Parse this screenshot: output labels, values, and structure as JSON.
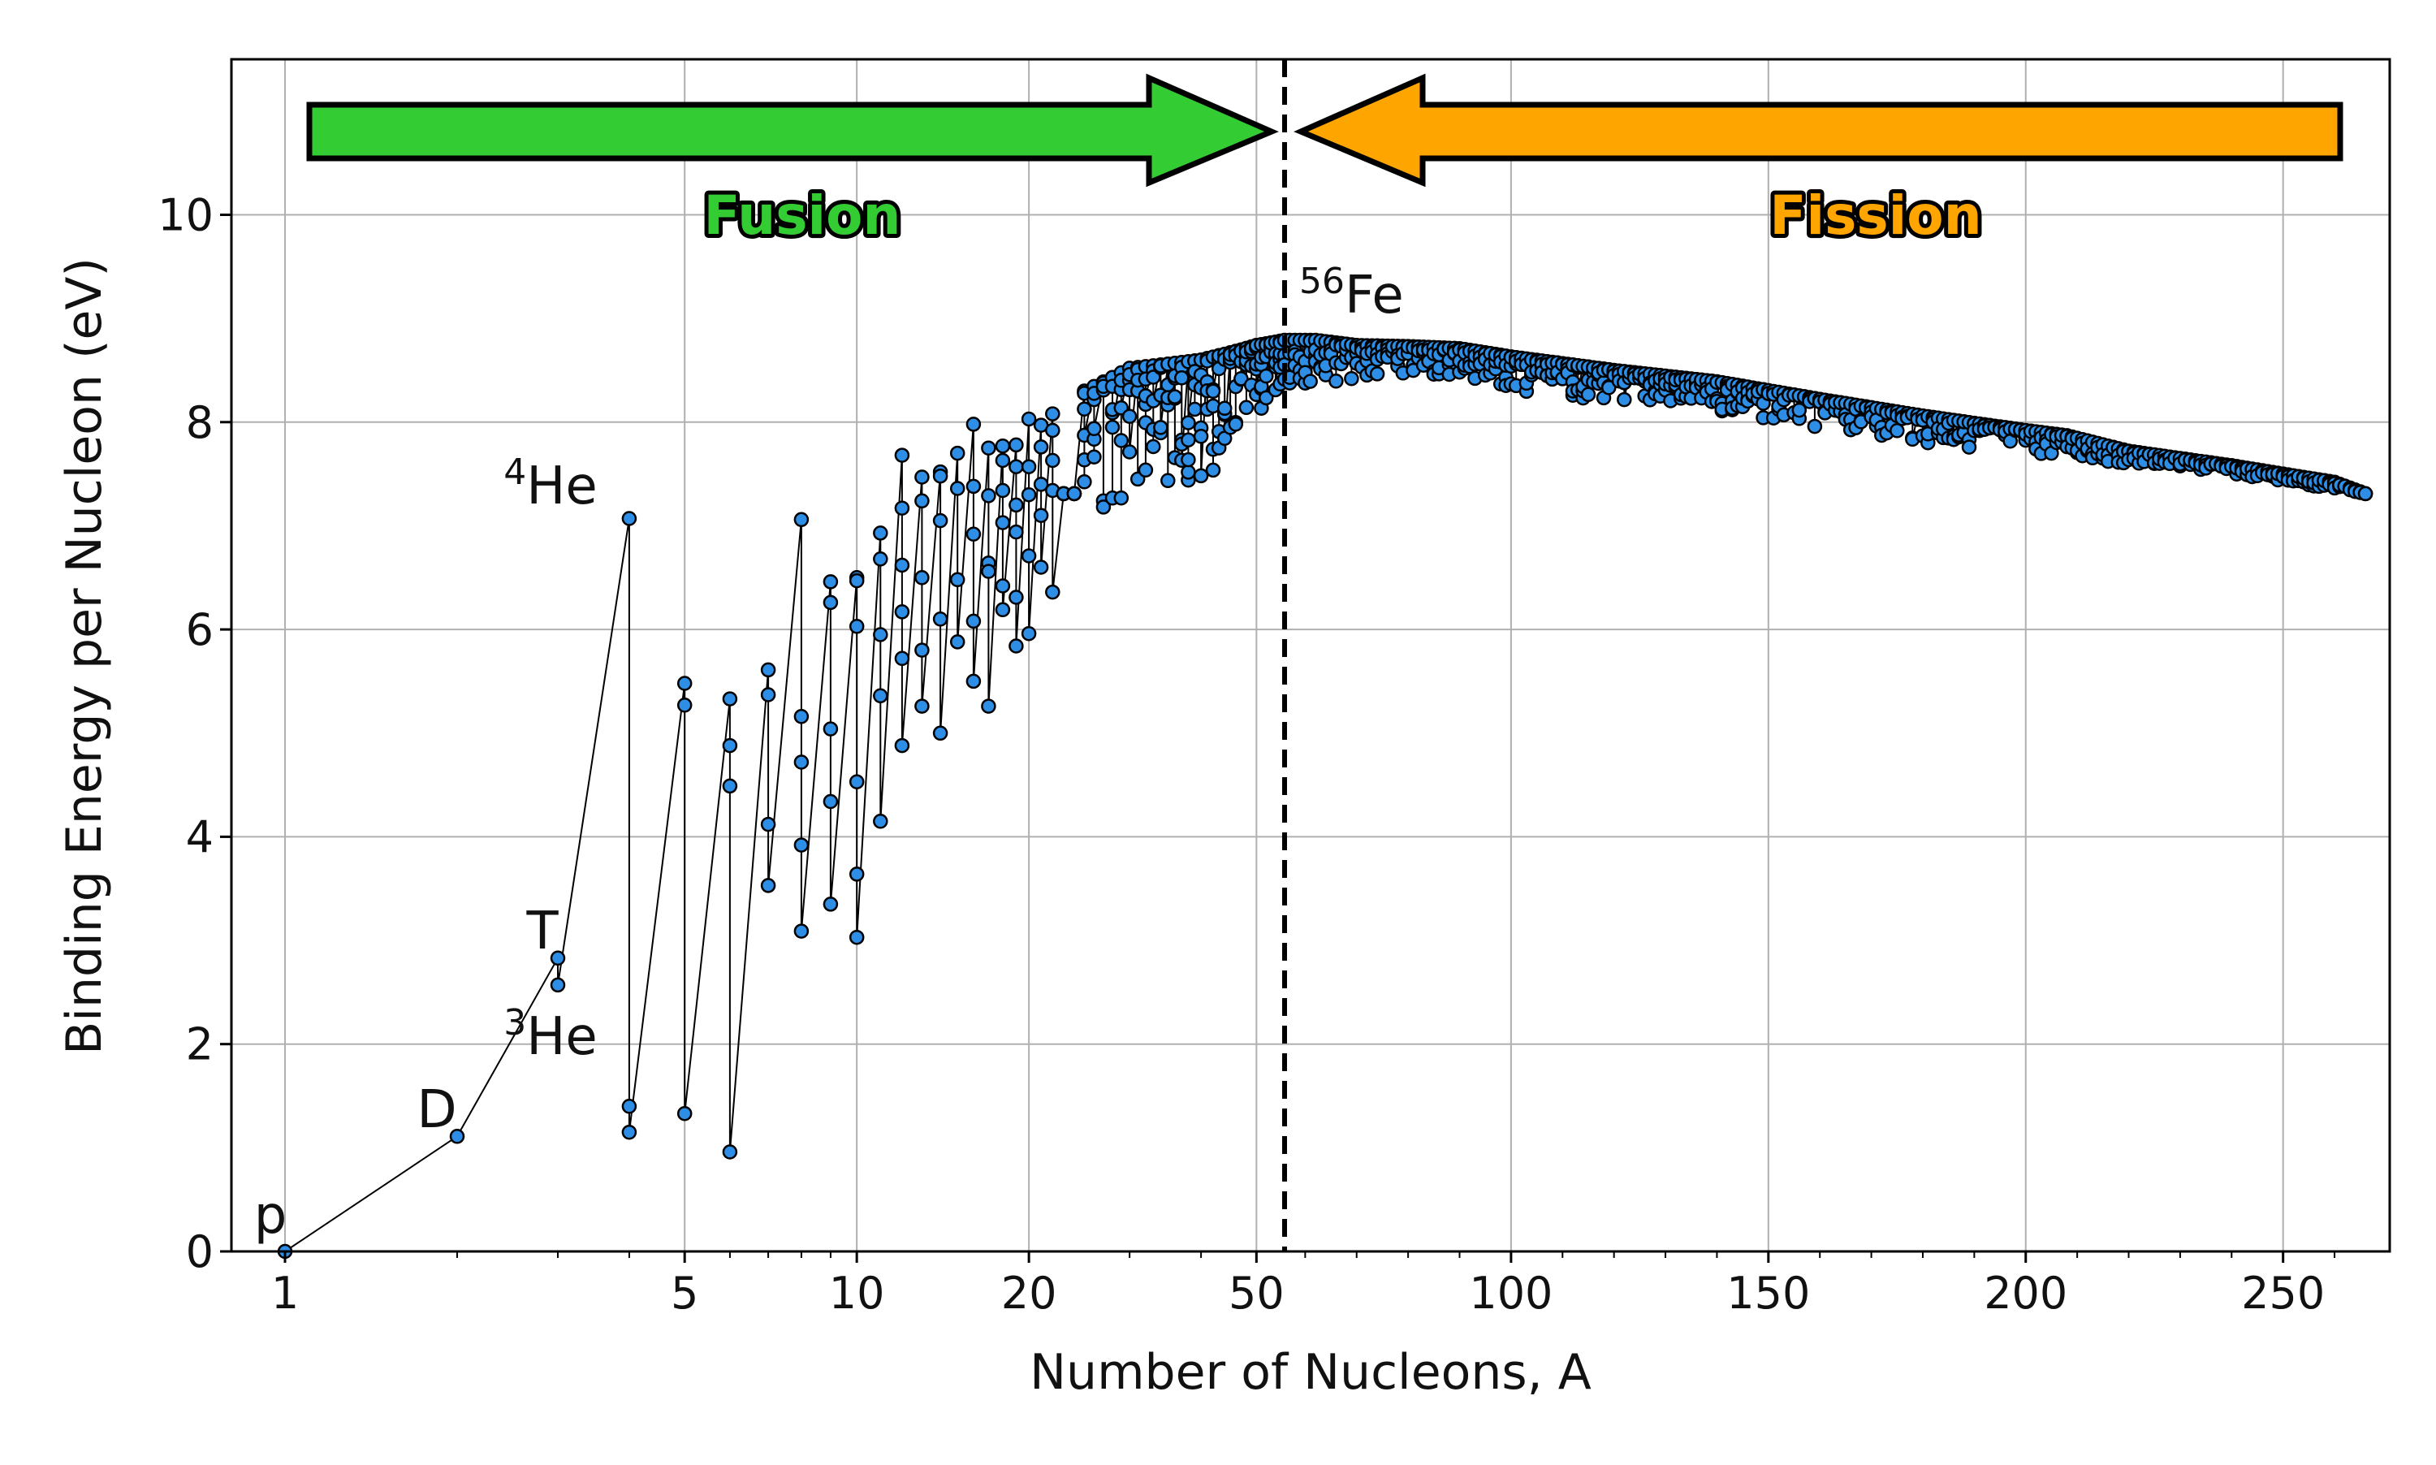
{
  "chart_data": {
    "type": "scatter",
    "title": "",
    "xlabel": "Number of Nucleons, A",
    "ylabel": "Binding Energy per Nucleon (eV)",
    "ylim": [
      0,
      11.5
    ],
    "yticks": [
      "0",
      "2",
      "4",
      "6",
      "8",
      "10"
    ],
    "x_scale": "log below A=56, linear above A=56",
    "xticks": [
      "1",
      "5",
      "10",
      "20",
      "50",
      "100",
      "150",
      "200",
      "250"
    ],
    "grid": true,
    "colors": {
      "points": "#2e8ee5",
      "fusion": "#33cc33",
      "fission": "#ffa500",
      "line": "#000000"
    },
    "annotations": [
      {
        "label": "p",
        "sup": "",
        "x": 1,
        "y": 0
      },
      {
        "label": "D",
        "sup": "",
        "x": 2,
        "y": 1.11
      },
      {
        "label": "T",
        "sup": "",
        "x": 3,
        "y": 2.83
      },
      {
        "label": "He",
        "sup": "3",
        "x": 3,
        "y": 2.57
      },
      {
        "label": "He",
        "sup": "4",
        "x": 4,
        "y": 7.07
      },
      {
        "label": "Fe",
        "sup": "56",
        "x": 56,
        "y": 8.79
      }
    ],
    "divider": {
      "x": 56,
      "style": "dashed"
    },
    "arrows": [
      {
        "label": "Fusion",
        "direction": "right",
        "color": "#33cc33"
      },
      {
        "label": "Fission",
        "direction": "left",
        "color": "#ffa500"
      }
    ],
    "light_nuclei": [
      {
        "A": 1,
        "values": [
          0.0
        ]
      },
      {
        "A": 2,
        "values": [
          1.11
        ]
      },
      {
        "A": 3,
        "values": [
          2.83,
          2.57
        ]
      },
      {
        "A": 4,
        "values": [
          7.07,
          1.4,
          1.15
        ]
      },
      {
        "A": 5,
        "values": [
          5.48,
          5.27,
          1.33
        ]
      },
      {
        "A": 6,
        "values": [
          5.33,
          4.88,
          4.49,
          0.96
        ]
      },
      {
        "A": 7,
        "values": [
          5.61,
          5.37,
          4.12,
          3.53
        ]
      },
      {
        "A": 8,
        "values": [
          7.06,
          5.16,
          4.72,
          3.92,
          3.09
        ]
      },
      {
        "A": 9,
        "values": [
          6.46,
          6.26,
          5.04,
          4.34,
          3.35
        ]
      },
      {
        "A": 10,
        "values": [
          6.5,
          6.47,
          6.03,
          4.53,
          3.64,
          3.03
        ]
      },
      {
        "A": 11,
        "values": [
          6.93,
          6.68,
          5.95,
          5.36,
          4.15
        ]
      },
      {
        "A": 12,
        "values": [
          7.68,
          7.17,
          6.62,
          6.17,
          5.72,
          4.88
        ]
      },
      {
        "A": 13,
        "values": [
          7.47,
          7.24,
          6.5,
          5.8,
          5.26
        ]
      },
      {
        "A": 14,
        "values": [
          7.52,
          7.48,
          7.05,
          6.1,
          5.0
        ]
      },
      {
        "A": 15,
        "values": [
          7.7,
          7.36,
          6.48,
          5.88
        ]
      },
      {
        "A": 16,
        "values": [
          7.98,
          7.38,
          6.92,
          6.08,
          5.5
        ]
      },
      {
        "A": 17,
        "values": [
          7.75,
          7.29,
          6.64,
          6.56,
          5.26
        ]
      },
      {
        "A": 18,
        "values": [
          7.77,
          7.63,
          7.34,
          7.03,
          6.42,
          6.19
        ]
      },
      {
        "A": 19,
        "values": [
          7.78,
          7.57,
          7.2,
          6.94,
          6.31,
          5.84
        ]
      },
      {
        "A": 20,
        "values": [
          8.03,
          7.57,
          7.3,
          6.71,
          5.96
        ]
      },
      {
        "A": 21,
        "values": [
          7.97,
          7.76,
          7.4,
          7.1,
          6.6
        ]
      },
      {
        "A": 22,
        "values": [
          8.08,
          7.92,
          7.63,
          7.34,
          6.36
        ]
      }
    ],
    "heavy_envelope": {
      "A": [
        25,
        30,
        40,
        50,
        56,
        62,
        70,
        80,
        90,
        100,
        120,
        140,
        160,
        180,
        200,
        208,
        220,
        240,
        260,
        266
      ],
      "top": [
        8.3,
        8.52,
        8.6,
        8.74,
        8.79,
        8.79,
        8.74,
        8.73,
        8.71,
        8.63,
        8.5,
        8.39,
        8.22,
        8.06,
        7.92,
        7.87,
        7.72,
        7.58,
        7.42,
        7.31
      ],
      "bottom": [
        7.0,
        7.3,
        7.4,
        8.0,
        8.35,
        8.38,
        8.4,
        8.43,
        8.45,
        8.3,
        8.2,
        8.1,
        7.95,
        7.8,
        7.7,
        7.65,
        7.6,
        7.5,
        7.35,
        7.31
      ]
    }
  }
}
